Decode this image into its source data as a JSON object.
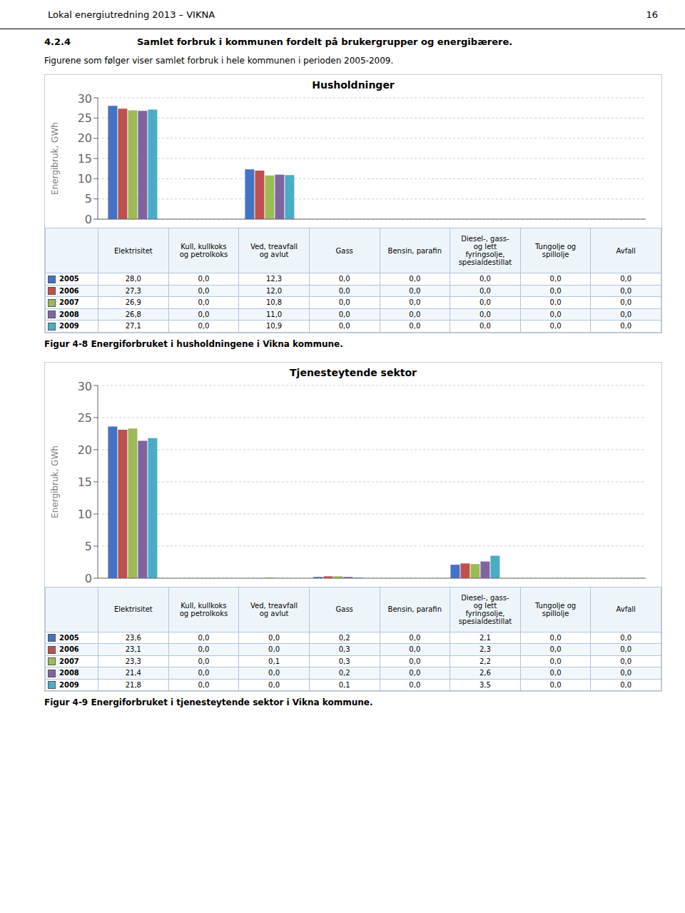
{
  "page_title": "Lokal energiutredning 2013 – VIKNA",
  "page_number": "16",
  "section_number": "4.2.4",
  "section_title": "Samlet forbruk i kommunen fordelt på brukergrupper og energibærere.",
  "intro_text": "Figurene som følger viser samlet forbruk i hele kommunen i perioden 2005-2009.",
  "chart_data": [
    {
      "type": "bar",
      "title": "Husholdninger",
      "ylabel": "Energibruk, GWh",
      "caption": "Figur 4-8 Energiforbruket i husholdningene i Vikna kommune.",
      "categories": [
        "Elektrisitet",
        "Kull, kullkoks\nog petrolkoks",
        "Ved, treavfall\nog avlut",
        "Gass",
        "Bensin, parafin",
        "Diesel-, gass-\nog lett\nfyringsolje,\nspesialdestillat",
        "Tungolje og\nspillolje",
        "Avfall"
      ],
      "series": [
        {
          "name": "2005",
          "color": "#4472C4",
          "values": [
            28.0,
            0.0,
            12.3,
            0.0,
            0.0,
            0.0,
            0.0,
            0.0
          ],
          "value_labels": [
            "28,0",
            "0,0",
            "12,3",
            "0,0",
            "0,0",
            "0,0",
            "0,0",
            "0,0"
          ]
        },
        {
          "name": "2006",
          "color": "#C0504D",
          "values": [
            27.3,
            0.0,
            12.0,
            0.0,
            0.0,
            0.0,
            0.0,
            0.0
          ],
          "value_labels": [
            "27,3",
            "0,0",
            "12,0",
            "0,0",
            "0,0",
            "0,0",
            "0,0",
            "0,0"
          ]
        },
        {
          "name": "2007",
          "color": "#9BBB59",
          "values": [
            26.9,
            0.0,
            10.8,
            0.0,
            0.0,
            0.0,
            0.0,
            0.0
          ],
          "value_labels": [
            "26,9",
            "0,0",
            "10,8",
            "0,0",
            "0,0",
            "0,0",
            "0,0",
            "0,0"
          ]
        },
        {
          "name": "2008",
          "color": "#8064A2",
          "values": [
            26.8,
            0.0,
            11.0,
            0.0,
            0.0,
            0.0,
            0.0,
            0.0
          ],
          "value_labels": [
            "26,8",
            "0,0",
            "11,0",
            "0,0",
            "0,0",
            "0,0",
            "0,0",
            "0,0"
          ]
        },
        {
          "name": "2009",
          "color": "#4BACC6",
          "values": [
            27.1,
            0.0,
            10.9,
            0.0,
            0.0,
            0.0,
            0.0,
            0.0
          ],
          "value_labels": [
            "27,1",
            "0,0",
            "10,9",
            "0,0",
            "0,0",
            "0,0",
            "0,0",
            "0,0"
          ]
        }
      ],
      "ylim": [
        0,
        30
      ],
      "yticks": [
        0,
        5,
        10,
        15,
        20,
        25,
        30
      ],
      "grid": true,
      "tick_labels": "y"
    },
    {
      "type": "bar",
      "title": "Tjenesteytende sektor",
      "ylabel": "Energibruk, GWh",
      "caption": "Figur 4-9 Energiforbruket i tjenesteytende sektor i Vikna kommune.",
      "categories": [
        "Elektrisitet",
        "Kull, kullkoks\nog petrolkoks",
        "Ved, treavfall\nog avlut",
        "Gass",
        "Bensin, parafin",
        "Diesel-, gass-\nog lett\nfyringsolje,\nspesialdestillat",
        "Tungolje og\nspillolje",
        "Avfall"
      ],
      "series": [
        {
          "name": "2005",
          "color": "#4472C4",
          "values": [
            23.6,
            0.0,
            0.0,
            0.2,
            0.0,
            2.1,
            0.0,
            0.0
          ],
          "value_labels": [
            "23,6",
            "0,0",
            "0,0",
            "0,2",
            "0,0",
            "2,1",
            "0,0",
            "0,0"
          ]
        },
        {
          "name": "2006",
          "color": "#C0504D",
          "values": [
            23.1,
            0.0,
            0.0,
            0.3,
            0.0,
            2.3,
            0.0,
            0.0
          ],
          "value_labels": [
            "23,1",
            "0,0",
            "0,0",
            "0,3",
            "0,0",
            "2,3",
            "0,0",
            "0,0"
          ]
        },
        {
          "name": "2007",
          "color": "#9BBB59",
          "values": [
            23.3,
            0.0,
            0.1,
            0.3,
            0.0,
            2.2,
            0.0,
            0.0
          ],
          "value_labels": [
            "23,3",
            "0,0",
            "0,1",
            "0,3",
            "0,0",
            "2,2",
            "0,0",
            "0,0"
          ]
        },
        {
          "name": "2008",
          "color": "#8064A2",
          "values": [
            21.4,
            0.0,
            0.0,
            0.2,
            0.0,
            2.6,
            0.0,
            0.0
          ],
          "value_labels": [
            "21,4",
            "0,0",
            "0,0",
            "0,2",
            "0,0",
            "2,6",
            "0,0",
            "0,0"
          ]
        },
        {
          "name": "2009",
          "color": "#4BACC6",
          "values": [
            21.8,
            0.0,
            0.0,
            0.1,
            0.0,
            3.5,
            0.0,
            0.0
          ],
          "value_labels": [
            "21,8",
            "0,0",
            "0,0",
            "0,1",
            "0,0",
            "3,5",
            "0,0",
            "0,0"
          ]
        }
      ],
      "ylim": [
        0,
        30
      ],
      "yticks": [
        0,
        5,
        10,
        15,
        20,
        25,
        30
      ],
      "grid": true,
      "tick_labels": "y"
    }
  ]
}
